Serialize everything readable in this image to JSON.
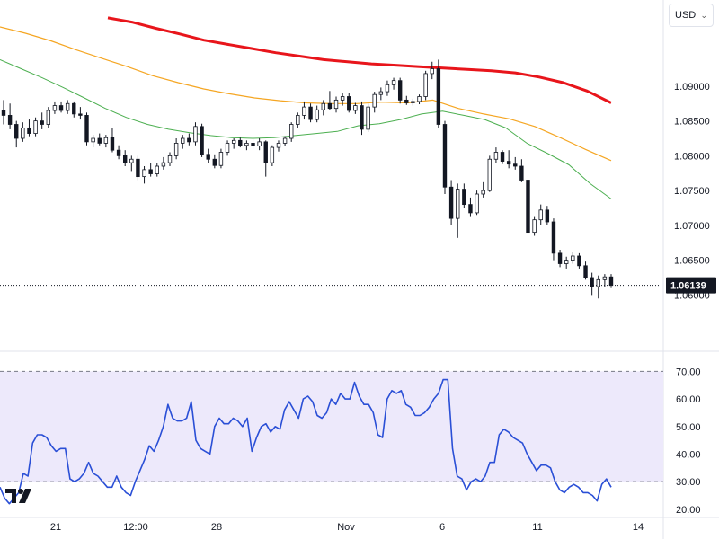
{
  "currency_selector": {
    "label": "USD",
    "icon": "chevron-down-icon"
  },
  "price_badge": "1.06139",
  "colors": {
    "ma_long": "#e8151b",
    "ma_mid": "#f5a623",
    "ma_short": "#4caf50",
    "rsi_line": "#2a4fd6",
    "rsi_band": "#ede9fb"
  },
  "chart_data": [
    {
      "type": "candlestick",
      "title": "",
      "y_ticks": [
        "1.09000",
        "1.08500",
        "1.08000",
        "1.07500",
        "1.07000",
        "1.06500",
        "1.06000"
      ],
      "ylim": [
        1.0585,
        1.0985
      ],
      "x_ticks": [
        "21",
        "12:00",
        "28",
        "Nov",
        "6",
        "11",
        "14"
      ],
      "last_price": 1.06139,
      "candles": [
        [
          1.0865,
          1.088,
          1.0845,
          1.0858
        ],
        [
          1.0858,
          1.0875,
          1.0838,
          1.0845
        ],
        [
          1.0845,
          1.085,
          1.0812,
          1.0825
        ],
        [
          1.0825,
          1.0848,
          1.082,
          1.084
        ],
        [
          1.084,
          1.0852,
          1.0828,
          1.0832
        ],
        [
          1.0832,
          1.0855,
          1.0828,
          1.085
        ],
        [
          1.085,
          1.0862,
          1.0838,
          1.0845
        ],
        [
          1.0845,
          1.087,
          1.084,
          1.0865
        ],
        [
          1.0865,
          1.0878,
          1.086,
          1.0872
        ],
        [
          1.0872,
          1.0878,
          1.0862,
          1.0865
        ],
        [
          1.0865,
          1.088,
          1.086,
          1.0875
        ],
        [
          1.0875,
          1.0878,
          1.0855,
          1.086
        ],
        [
          1.086,
          1.087,
          1.0852,
          1.0858
        ],
        [
          1.0858,
          1.0862,
          1.0815,
          1.082
        ],
        [
          1.082,
          1.083,
          1.0812,
          1.0825
        ],
        [
          1.0825,
          1.0832,
          1.0815,
          1.0818
        ],
        [
          1.0818,
          1.083,
          1.0812,
          1.0826
        ],
        [
          1.0826,
          1.084,
          1.0805,
          1.0808
        ],
        [
          1.0808,
          1.0815,
          1.0795,
          1.08
        ],
        [
          1.08,
          1.0808,
          1.0785,
          1.079
        ],
        [
          1.079,
          1.08,
          1.0778,
          1.0795
        ],
        [
          1.0795,
          1.08,
          1.0765,
          1.077
        ],
        [
          1.077,
          1.0785,
          1.076,
          1.078
        ],
        [
          1.078,
          1.079,
          1.077,
          1.0774
        ],
        [
          1.0774,
          1.079,
          1.077,
          1.0785
        ],
        [
          1.0785,
          1.0798,
          1.078,
          1.079
        ],
        [
          1.079,
          1.0805,
          1.0785,
          1.08
        ],
        [
          1.08,
          1.0825,
          1.0795,
          1.0818
        ],
        [
          1.0818,
          1.083,
          1.081,
          1.0825
        ],
        [
          1.0825,
          1.0832,
          1.0815,
          1.082
        ],
        [
          1.082,
          1.0848,
          1.0815,
          1.0842
        ],
        [
          1.0842,
          1.0846,
          1.0798,
          1.0802
        ],
        [
          1.0802,
          1.081,
          1.079,
          1.0795
        ],
        [
          1.0795,
          1.0802,
          1.0782,
          1.0786
        ],
        [
          1.0786,
          1.081,
          1.0782,
          1.0805
        ],
        [
          1.0805,
          1.0822,
          1.08,
          1.0818
        ],
        [
          1.0818,
          1.0825,
          1.081,
          1.0822
        ],
        [
          1.0822,
          1.0826,
          1.0812,
          1.0815
        ],
        [
          1.0815,
          1.0822,
          1.0808,
          1.0818
        ],
        [
          1.0818,
          1.0824,
          1.081,
          1.0814
        ],
        [
          1.0814,
          1.0825,
          1.0808,
          1.082
        ],
        [
          1.082,
          1.0822,
          1.077,
          1.079
        ],
        [
          1.079,
          1.0815,
          1.0785,
          1.0812
        ],
        [
          1.0812,
          1.0822,
          1.0806,
          1.0818
        ],
        [
          1.0818,
          1.0828,
          1.0814,
          1.0825
        ],
        [
          1.0825,
          1.0848,
          1.082,
          1.0845
        ],
        [
          1.0845,
          1.0862,
          1.084,
          1.0858
        ],
        [
          1.0858,
          1.0878,
          1.0852,
          1.087
        ],
        [
          1.087,
          1.0875,
          1.0848,
          1.0852
        ],
        [
          1.0852,
          1.0872,
          1.0848,
          1.0866
        ],
        [
          1.0866,
          1.088,
          1.0858,
          1.0875
        ],
        [
          1.0875,
          1.0893,
          1.0865,
          1.0868
        ],
        [
          1.0868,
          1.0885,
          1.0862,
          1.088
        ],
        [
          1.088,
          1.089,
          1.0872,
          1.0885
        ],
        [
          1.0885,
          1.089,
          1.0862,
          1.0865
        ],
        [
          1.0865,
          1.0876,
          1.086,
          1.0872
        ],
        [
          1.0872,
          1.0878,
          1.083,
          1.0838
        ],
        [
          1.0838,
          1.0875,
          1.0834,
          1.087
        ],
        [
          1.087,
          1.0892,
          1.0862,
          1.0888
        ],
        [
          1.0888,
          1.0898,
          1.088,
          1.0892
        ],
        [
          1.0892,
          1.0908,
          1.0886,
          1.0902
        ],
        [
          1.0902,
          1.0912,
          1.0895,
          1.0908
        ],
        [
          1.0908,
          1.0912,
          1.0875,
          1.088
        ],
        [
          1.088,
          1.0886,
          1.0873,
          1.0876
        ],
        [
          1.0876,
          1.0882,
          1.0872,
          1.0878
        ],
        [
          1.0878,
          1.0888,
          1.0874,
          1.0885
        ],
        [
          1.0885,
          1.0922,
          1.088,
          1.0918
        ],
        [
          1.0918,
          1.0935,
          1.091,
          1.0925
        ],
        [
          1.0925,
          1.0938,
          1.084,
          1.0845
        ],
        [
          1.0845,
          1.085,
          1.0745,
          1.0755
        ],
        [
          1.0755,
          1.0765,
          1.07,
          1.071
        ],
        [
          1.071,
          1.076,
          1.0682,
          1.0752
        ],
        [
          1.0752,
          1.076,
          1.0725,
          1.073
        ],
        [
          1.073,
          1.074,
          1.0712,
          1.0718
        ],
        [
          1.0718,
          1.075,
          1.0715,
          1.0745
        ],
        [
          1.0745,
          1.0762,
          1.074,
          1.075
        ],
        [
          1.075,
          1.08,
          1.0748,
          1.0795
        ],
        [
          1.0795,
          1.0812,
          1.079,
          1.0805
        ],
        [
          1.0805,
          1.0808,
          1.0788,
          1.0792
        ],
        [
          1.0792,
          1.0808,
          1.0782,
          1.0788
        ],
        [
          1.0788,
          1.0798,
          1.078,
          1.0785
        ],
        [
          1.0785,
          1.0795,
          1.0762,
          1.0765
        ],
        [
          1.0765,
          1.077,
          1.068,
          1.069
        ],
        [
          1.069,
          1.0712,
          1.0685,
          1.0708
        ],
        [
          1.0708,
          1.073,
          1.07,
          1.0722
        ],
        [
          1.0722,
          1.0728,
          1.07,
          1.0705
        ],
        [
          1.0705,
          1.071,
          1.065,
          1.066
        ],
        [
          1.066,
          1.0665,
          1.064,
          1.0645
        ],
        [
          1.0645,
          1.0655,
          1.0638,
          1.065
        ],
        [
          1.065,
          1.0662,
          1.0645,
          1.0656
        ],
        [
          1.0656,
          1.066,
          1.0638,
          1.0642
        ],
        [
          1.0642,
          1.0648,
          1.0622,
          1.0625
        ],
        [
          1.0625,
          1.0632,
          1.06,
          1.0612
        ],
        [
          1.0612,
          1.0628,
          1.0595,
          1.0622
        ],
        [
          1.0622,
          1.063,
          1.0612,
          1.0626
        ],
        [
          1.0626,
          1.063,
          1.061,
          1.0614
        ]
      ],
      "moving_averages": [
        {
          "values": [
            1.0998,
            1.0992,
            1.0983,
            1.0975,
            1.0966,
            1.096,
            1.0954,
            1.0948,
            1.0943,
            1.0938,
            1.0935,
            1.0932,
            1.093,
            1.0928,
            1.0926,
            1.0924,
            1.0922,
            1.0919,
            1.0913,
            1.0905,
            1.0893,
            1.0876
          ]
        },
        {
          "values": [
            1.0985,
            1.0976,
            1.0965,
            1.0952,
            1.094,
            1.0928,
            1.0915,
            1.0905,
            1.0896,
            1.0889,
            1.0883,
            1.0879,
            1.0876,
            1.0875,
            1.0875,
            1.0877,
            1.0876,
            1.088,
            1.0868,
            1.086,
            1.0853,
            1.0842,
            1.0826,
            1.0809,
            1.0793
          ]
        },
        {
          "values": [
            1.0938,
            1.0925,
            1.0912,
            1.0898,
            1.0883,
            1.0868,
            1.0855,
            1.0845,
            1.0838,
            1.0833,
            1.0829,
            1.0826,
            1.0825,
            1.0826,
            1.0829,
            1.0832,
            1.0835,
            1.0843,
            1.0846,
            1.0852,
            1.086,
            1.0864,
            1.0858,
            1.0852,
            1.084,
            1.0818,
            1.0803,
            1.0787,
            1.076,
            1.0738
          ]
        }
      ]
    },
    {
      "type": "line",
      "title": "",
      "y_ticks": [
        "70.00",
        "60.00",
        "50.00",
        "40.00",
        "30.00",
        "20.00"
      ],
      "ylim": [
        18,
        75
      ],
      "bands": [
        30,
        70
      ],
      "values": [
        28,
        24,
        22,
        24,
        26,
        33,
        32,
        44,
        47,
        47,
        46,
        43,
        41,
        42,
        42,
        31,
        30,
        31,
        33,
        37,
        33,
        32,
        30,
        28,
        28,
        32,
        28,
        26,
        25,
        30,
        34,
        38,
        43,
        41,
        45,
        50,
        58,
        53,
        52,
        52,
        53,
        59,
        45,
        42,
        41,
        40,
        50,
        53,
        51,
        51,
        53,
        52,
        50,
        53,
        41,
        46,
        50,
        51,
        48,
        50,
        49,
        56,
        59,
        56,
        53,
        60,
        61,
        59,
        54,
        53,
        55,
        60,
        58,
        62,
        60,
        60,
        66,
        61,
        58,
        58,
        55,
        47,
        46,
        60,
        63,
        62,
        63,
        58,
        57,
        54,
        54,
        55,
        57,
        60,
        62,
        67,
        67,
        42,
        32,
        31,
        27,
        30,
        31,
        30,
        32,
        37,
        37,
        47,
        49,
        48,
        46,
        45,
        44,
        40,
        37,
        34,
        36,
        36,
        35,
        30,
        27,
        26,
        28,
        29,
        28,
        26,
        26,
        25,
        23,
        29,
        31,
        28
      ]
    }
  ]
}
